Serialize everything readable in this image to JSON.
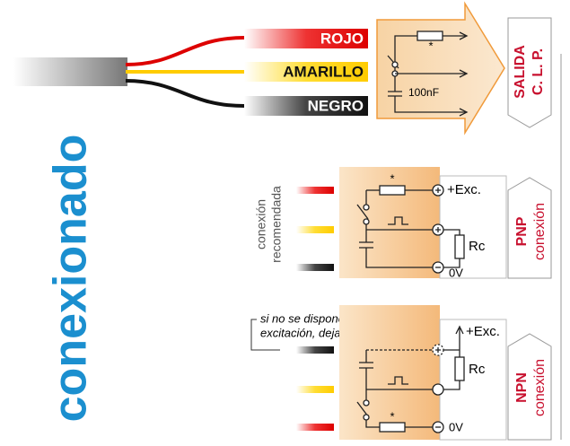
{
  "title": "conexionado",
  "cable": {
    "wires": [
      "ROJO",
      "AMARILLO",
      "NEGRO"
    ]
  },
  "output": {
    "resistor_mark": "*",
    "capacitor": "100nF",
    "label": [
      "SALIDA",
      "C. L. P."
    ]
  },
  "pnp": {
    "note": [
      "conexión",
      "recomendada"
    ],
    "resistor_mark": "*",
    "supply": "+Exc.",
    "load": "Rc",
    "ground": "0V",
    "label": [
      "PNP",
      "conexión"
    ]
  },
  "npn": {
    "note": [
      "si no se dispone de acceso a",
      "excitación, dejarlo sin conectar"
    ],
    "supply": "+Exc.",
    "load": "Rc",
    "resistor_mark": "*",
    "ground": "0V",
    "label": [
      "NPN",
      "conexión"
    ]
  }
}
